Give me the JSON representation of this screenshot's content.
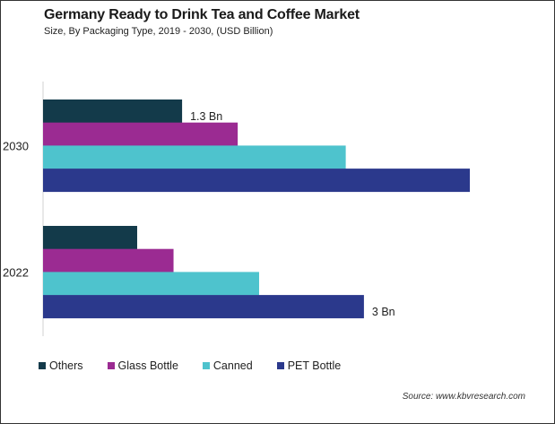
{
  "chart_data": {
    "type": "bar",
    "orientation": "horizontal",
    "title": "Germany Ready to Drink Tea and Coffee Market",
    "subtitle": "Size, By Packaging Type, 2019 - 2030, (USD Billion)",
    "categories": [
      "2030",
      "2022"
    ],
    "series": [
      {
        "name": "Others",
        "color": "#133a4a",
        "values": [
          1.3,
          0.88
        ]
      },
      {
        "name": "Glass Bottle",
        "color": "#9b2b92",
        "values": [
          1.82,
          1.22
        ]
      },
      {
        "name": "Canned",
        "color": "#4ec3cd",
        "values": [
          2.83,
          2.02
        ]
      },
      {
        "name": "PET Bottle",
        "color": "#2b398c",
        "values": [
          3.99,
          3.0
        ]
      }
    ],
    "data_labels": [
      {
        "category": "2030",
        "series": "Others",
        "text": "1.3 Bn"
      },
      {
        "category": "2022",
        "series": "PET Bottle",
        "text": "3 Bn"
      }
    ],
    "xlim": [
      0,
      4.5
    ],
    "grid": false,
    "legend": "bottom",
    "source": "Source: www.kbvresearch.com"
  }
}
